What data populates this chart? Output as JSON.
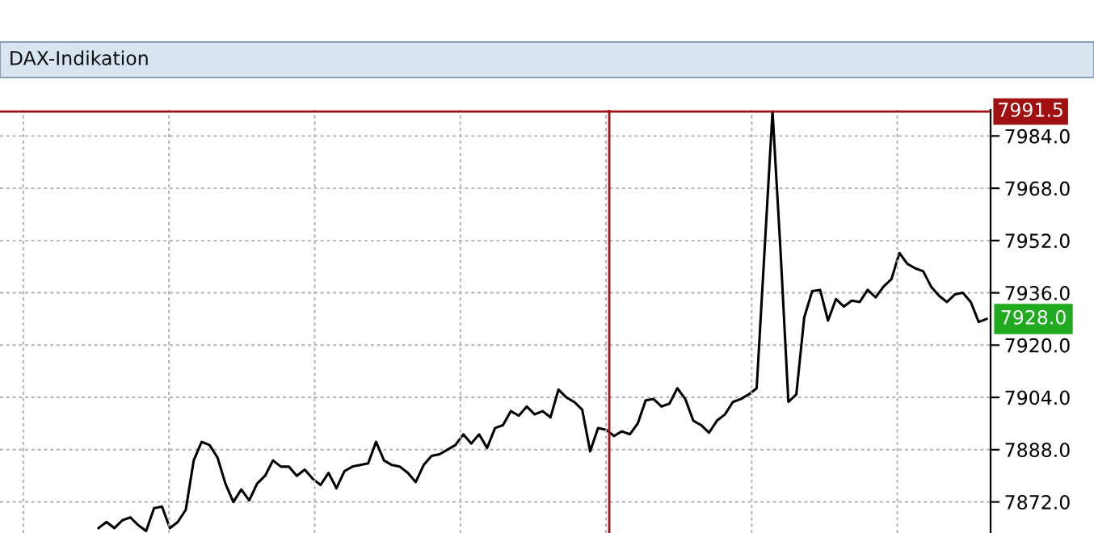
{
  "chart_data": {
    "type": "line",
    "title": "DAX-Indikation",
    "categories": [
      null,
      null,
      null,
      null,
      null,
      null,
      null,
      null,
      null,
      null,
      null,
      null,
      null,
      null,
      null,
      null,
      null,
      null,
      null,
      null,
      null,
      null,
      null,
      null,
      null,
      null,
      null,
      null,
      null,
      null,
      null,
      null,
      null,
      null,
      null,
      null,
      null,
      null,
      null,
      null,
      null,
      null,
      null,
      null,
      null,
      null,
      null,
      null,
      null,
      null,
      null,
      null,
      null,
      null,
      null,
      null,
      null,
      null,
      null,
      null,
      null,
      null,
      null,
      null,
      null,
      null,
      null,
      null,
      null,
      null,
      null,
      null,
      null,
      null,
      null,
      null,
      null,
      null,
      null,
      null,
      null,
      null,
      null,
      null,
      null,
      null,
      null,
      null,
      null,
      null,
      null,
      null,
      null,
      null,
      null,
      null,
      null,
      null,
      null,
      null,
      null,
      null,
      null,
      null,
      null,
      null,
      null,
      null,
      null,
      null,
      null,
      null,
      null
    ],
    "series": [
      {
        "color": "#000000",
        "values": [
          7864.0,
          7865.9,
          7864.0,
          7866.4,
          7867.3,
          7864.9,
          7863.1,
          7870.1,
          7870.6,
          7864.0,
          7865.9,
          7869.6,
          7884.7,
          7890.4,
          7889.4,
          7885.6,
          7877.6,
          7872.0,
          7875.8,
          7872.5,
          7877.6,
          7880.0,
          7884.7,
          7882.8,
          7882.8,
          7880.0,
          7881.9,
          7879.1,
          7877.2,
          7880.9,
          7876.2,
          7881.4,
          7882.8,
          7883.3,
          7883.8,
          7890.4,
          7884.7,
          7883.3,
          7882.8,
          7880.9,
          7878.1,
          7883.3,
          7886.1,
          7886.6,
          7888.0,
          7889.4,
          7892.7,
          7889.9,
          7892.7,
          7888.5,
          7894.6,
          7895.5,
          7899.8,
          7898.4,
          7901.2,
          7898.8,
          7899.8,
          7897.9,
          7906.4,
          7904.0,
          7902.6,
          7900.2,
          7887.5,
          7894.6,
          7894.1,
          7892.2,
          7893.6,
          7892.7,
          7896.0,
          7903.1,
          7903.5,
          7901.2,
          7902.1,
          7906.8,
          7903.5,
          7896.9,
          7895.5,
          7893.2,
          7896.9,
          7898.8,
          7902.6,
          7903.5,
          7904.9,
          7906.8,
          7949.2,
          7991.5,
          7949.2,
          7902.6,
          7904.9,
          7928.5,
          7936.5,
          7936.9,
          7927.5,
          7934.1,
          7931.8,
          7933.6,
          7933.2,
          7936.9,
          7934.6,
          7937.9,
          7940.2,
          7948.2,
          7944.9,
          7943.5,
          7942.6,
          7937.9,
          7935.1,
          7933.2,
          7935.5,
          7936.0,
          7933.2,
          7927.1,
          7928.0
        ]
      }
    ],
    "ylim": [
      7862.5,
      7992
    ],
    "yticks": [
      {
        "value": 7872,
        "label": "7872.0"
      },
      {
        "value": 7888,
        "label": "7888.0"
      },
      {
        "value": 7904,
        "label": "7904.0"
      },
      {
        "value": 7920,
        "label": "7920.0"
      },
      {
        "value": 7936,
        "label": "7936.0"
      },
      {
        "value": 7952,
        "label": "7952.0"
      },
      {
        "value": 7968,
        "label": "7968.0"
      },
      {
        "value": 7984,
        "label": "7984.0"
      }
    ],
    "tick_labels": "y",
    "grid": true,
    "ref_lines": [
      {
        "axis": "y",
        "value": 7991.5,
        "label": "7991.5",
        "color": "#a01010"
      }
    ],
    "annotations": [
      "7928.0"
    ]
  }
}
